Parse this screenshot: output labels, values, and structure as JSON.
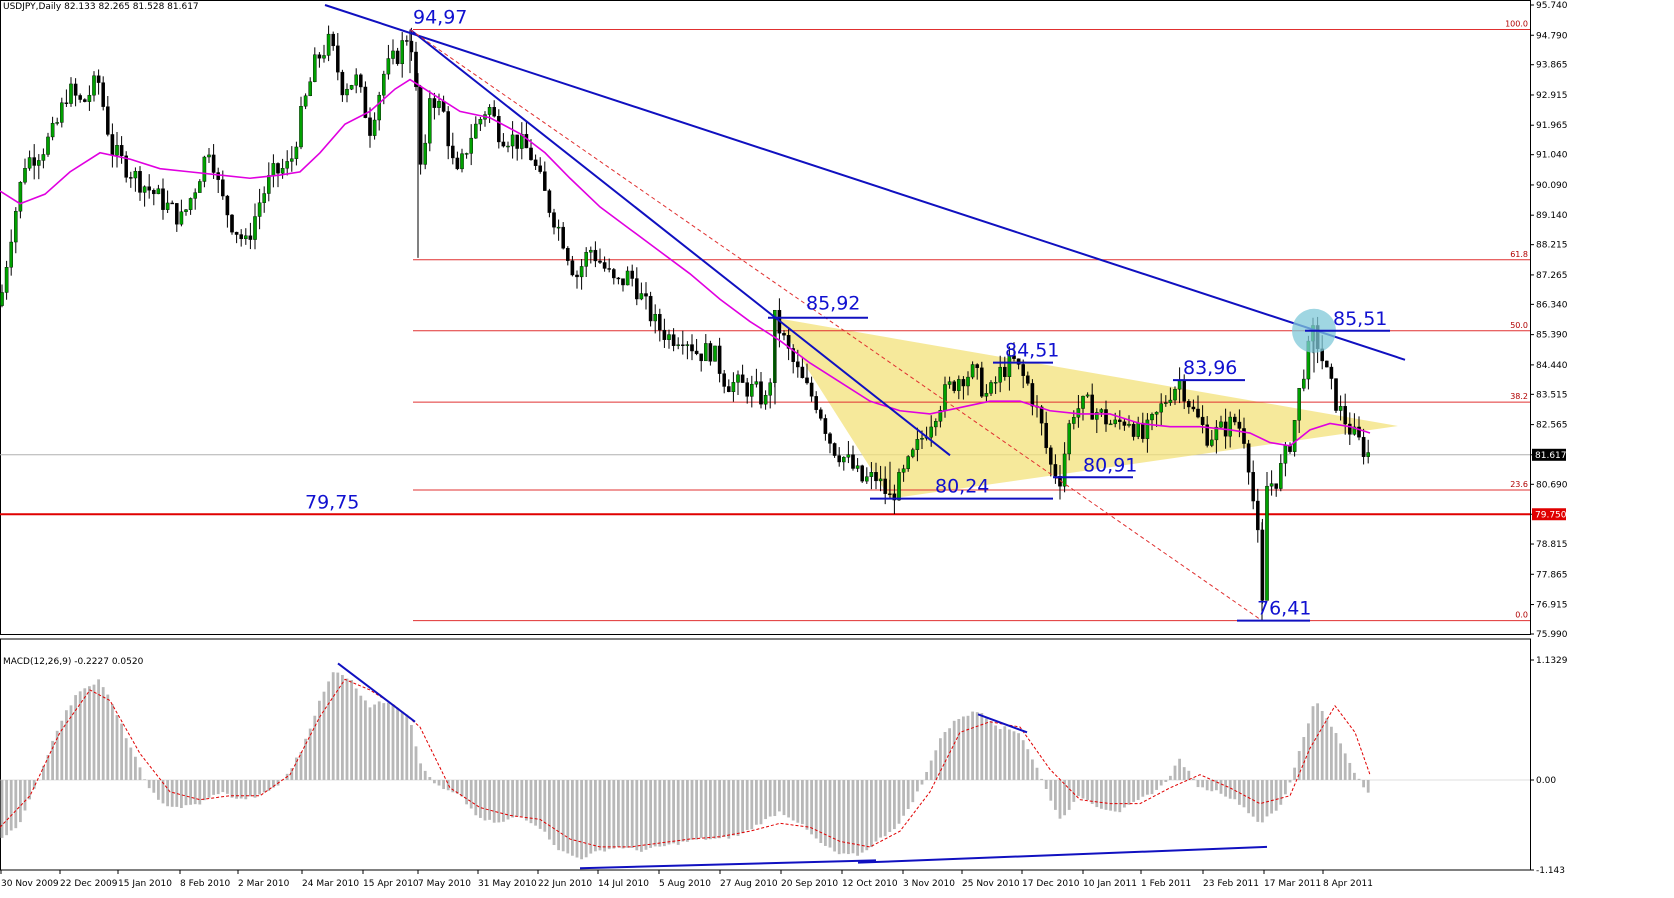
{
  "header": {
    "main_label": "USDJPY,Daily  82.133 82.265 81.528 81.617",
    "macd_label": "MACD(12,26,9) -0.2227 0.0520"
  },
  "colors": {
    "candle_up": "#00a000",
    "candle_down": "#000000",
    "ma": "#e000e0",
    "trendline": "#1010c0",
    "fib": "#e03030",
    "support": "#e00000",
    "triangle": "#f3e27a",
    "highlight": "#7fc8d8",
    "macd_hist": "#b8b8b8",
    "macd_signal": "#e00000"
  },
  "chart_data": [
    {
      "type": "candlestick",
      "symbol": "USDJPY",
      "timeframe": "Daily",
      "ohlc_last": {
        "open": 82.133,
        "high": 82.265,
        "low": 81.528,
        "close": 81.617
      },
      "y_ticks": [
        95.74,
        94.79,
        93.865,
        92.915,
        91.965,
        91.04,
        90.09,
        89.14,
        88.215,
        87.265,
        86.34,
        85.39,
        84.44,
        83.515,
        82.565,
        81.617,
        80.69,
        79.75,
        78.815,
        77.865,
        76.915,
        75.99
      ],
      "y_tick_labels": [
        "95.740",
        "94.790",
        "93.865",
        "92.915",
        "91.965",
        "91.040",
        "90.090",
        "89.140",
        "88.215",
        "87.265",
        "86.340",
        "85.390",
        "84.440",
        "83.515",
        "82.565",
        "81.617",
        "80.690",
        "79.750",
        "78.815",
        "77.865",
        "76.915",
        "75.990"
      ],
      "ylim": [
        75.99,
        95.74
      ],
      "x_labels": [
        "30 Nov 2009",
        "22 Dec 2009",
        "15 Jan 2010",
        "8 Feb 2010",
        "2 Mar 2010",
        "24 Mar 2010",
        "15 Apr 2010",
        "7 May 2010",
        "31 May 2010",
        "22 Jun 2010",
        "14 Jul 2010",
        "5 Aug 2010",
        "27 Aug 2010",
        "20 Sep 2010",
        "12 Oct 2010",
        "3 Nov 2010",
        "25 Nov 2010",
        "17 Dec 2010",
        "10 Jan 2011",
        "1 Feb 2011",
        "23 Feb 2011",
        "17 Mar 2011",
        "8 Apr 2011"
      ],
      "price_path": [
        [
          0,
          86.3
        ],
        [
          10,
          88.4
        ],
        [
          25,
          90.8
        ],
        [
          42,
          91.2
        ],
        [
          55,
          91.8
        ],
        [
          68,
          93.1
        ],
        [
          82,
          92.6
        ],
        [
          98,
          93.4
        ],
        [
          112,
          91.2
        ],
        [
          125,
          90.7
        ],
        [
          140,
          90.2
        ],
        [
          155,
          89.8
        ],
        [
          168,
          89.4
        ],
        [
          182,
          89.0
        ],
        [
          196,
          90.1
        ],
        [
          210,
          91.4
        ],
        [
          220,
          89.8
        ],
        [
          232,
          88.9
        ],
        [
          246,
          88.2
        ],
        [
          260,
          89.6
        ],
        [
          272,
          90.4
        ],
        [
          290,
          90.7
        ],
        [
          300,
          92.1
        ],
        [
          316,
          94.0
        ],
        [
          330,
          94.6
        ],
        [
          342,
          93.2
        ],
        [
          356,
          93.4
        ],
        [
          370,
          91.9
        ],
        [
          384,
          93.6
        ],
        [
          398,
          94.2
        ],
        [
          410,
          94.97
        ],
        [
          418,
          92.3
        ],
        [
          422,
          89.8
        ],
        [
          430,
          93.0
        ],
        [
          444,
          92.3
        ],
        [
          456,
          90.2
        ],
        [
          470,
          91.6
        ],
        [
          488,
          92.6
        ],
        [
          500,
          91.7
        ],
        [
          516,
          91.5
        ],
        [
          530,
          91.1
        ],
        [
          548,
          89.5
        ],
        [
          562,
          88.5
        ],
        [
          576,
          87.2
        ],
        [
          590,
          88.1
        ],
        [
          602,
          87.6
        ],
        [
          616,
          86.9
        ],
        [
          630,
          87.3
        ],
        [
          642,
          86.5
        ],
        [
          656,
          85.7
        ],
        [
          670,
          85.3
        ],
        [
          684,
          85.4
        ],
        [
          698,
          84.8
        ],
        [
          712,
          84.9
        ],
        [
          726,
          83.9
        ],
        [
          740,
          83.8
        ],
        [
          756,
          83.6
        ],
        [
          768,
          83.2
        ],
        [
          775,
          85.92
        ],
        [
          790,
          84.7
        ],
        [
          804,
          83.8
        ],
        [
          818,
          83.2
        ],
        [
          832,
          81.9
        ],
        [
          848,
          81.4
        ],
        [
          862,
          80.8
        ],
        [
          876,
          80.9
        ],
        [
          890,
          80.24
        ],
        [
          904,
          81.0
        ],
        [
          918,
          81.9
        ],
        [
          932,
          82.8
        ],
        [
          946,
          83.6
        ],
        [
          960,
          84.1
        ],
        [
          974,
          84.2
        ],
        [
          988,
          83.4
        ],
        [
          1002,
          84.3
        ],
        [
          1014,
          84.51
        ],
        [
          1028,
          83.8
        ],
        [
          1040,
          82.7
        ],
        [
          1050,
          81.3
        ],
        [
          1060,
          80.91
        ],
        [
          1072,
          83.0
        ],
        [
          1086,
          83.2
        ],
        [
          1100,
          82.9
        ],
        [
          1114,
          82.5
        ],
        [
          1128,
          82.8
        ],
        [
          1142,
          82.1
        ],
        [
          1156,
          82.8
        ],
        [
          1170,
          83.6
        ],
        [
          1180,
          83.96
        ],
        [
          1194,
          82.9
        ],
        [
          1208,
          82.2
        ],
        [
          1222,
          82.4
        ],
        [
          1236,
          82.7
        ],
        [
          1246,
          82.1
        ],
        [
          1252,
          80.5
        ],
        [
          1258,
          78.9
        ],
        [
          1262,
          76.41
        ],
        [
          1266,
          80.6
        ],
        [
          1278,
          80.9
        ],
        [
          1292,
          82.2
        ],
        [
          1302,
          84.1
        ],
        [
          1314,
          85.51
        ],
        [
          1326,
          84.2
        ],
        [
          1338,
          83.1
        ],
        [
          1352,
          82.3
        ],
        [
          1366,
          81.7
        ],
        [
          1370,
          81.617
        ]
      ],
      "ma_path": [
        [
          0,
          89.9
        ],
        [
          20,
          89.5
        ],
        [
          45,
          89.8
        ],
        [
          70,
          90.5
        ],
        [
          100,
          91.1
        ],
        [
          130,
          90.9
        ],
        [
          160,
          90.6
        ],
        [
          190,
          90.5
        ],
        [
          220,
          90.4
        ],
        [
          250,
          90.3
        ],
        [
          280,
          90.4
        ],
        [
          300,
          90.5
        ],
        [
          320,
          91.1
        ],
        [
          345,
          92.0
        ],
        [
          370,
          92.4
        ],
        [
          395,
          93.1
        ],
        [
          410,
          93.4
        ],
        [
          430,
          93.0
        ],
        [
          460,
          92.4
        ],
        [
          490,
          92.2
        ],
        [
          520,
          91.7
        ],
        [
          545,
          91.1
        ],
        [
          570,
          90.3
        ],
        [
          600,
          89.4
        ],
        [
          630,
          88.7
        ],
        [
          660,
          88.0
        ],
        [
          690,
          87.3
        ],
        [
          720,
          86.5
        ],
        [
          750,
          85.8
        ],
        [
          780,
          85.2
        ],
        [
          810,
          84.5
        ],
        [
          840,
          83.9
        ],
        [
          870,
          83.3
        ],
        [
          900,
          83.0
        ],
        [
          930,
          82.9
        ],
        [
          960,
          83.1
        ],
        [
          990,
          83.3
        ],
        [
          1020,
          83.3
        ],
        [
          1050,
          83.0
        ],
        [
          1080,
          82.9
        ],
        [
          1110,
          82.9
        ],
        [
          1140,
          82.6
        ],
        [
          1170,
          82.5
        ],
        [
          1200,
          82.5
        ],
        [
          1230,
          82.4
        ],
        [
          1250,
          82.3
        ],
        [
          1270,
          82.0
        ],
        [
          1290,
          81.9
        ],
        [
          1310,
          82.4
        ],
        [
          1330,
          82.6
        ],
        [
          1350,
          82.5
        ],
        [
          1370,
          82.3
        ]
      ],
      "fib_levels": [
        {
          "label": "100.0",
          "price": 94.97
        },
        {
          "label": "61.8",
          "price": 87.74
        },
        {
          "label": "50.0",
          "price": 85.51
        },
        {
          "label": "38.2",
          "price": 83.27
        },
        {
          "label": "23.6",
          "price": 80.51
        },
        {
          "label": "0.0",
          "price": 76.41
        }
      ],
      "support_level": {
        "price": 79.75,
        "label": "79,75"
      },
      "current_price_label": "81.617",
      "support_price_label": "79.750",
      "annotations": [
        {
          "text": "94,97",
          "price": 94.97
        },
        {
          "text": "85,92",
          "price": 85.92
        },
        {
          "text": "84,51",
          "price": 84.51
        },
        {
          "text": "83,96",
          "price": 83.96
        },
        {
          "text": "85,51",
          "price": 85.51
        },
        {
          "text": "80,24",
          "price": 80.24
        },
        {
          "text": "80,91",
          "price": 80.91
        },
        {
          "text": "79,75",
          "price": 79.75
        },
        {
          "text": "76,41",
          "price": 76.41
        }
      ]
    },
    {
      "type": "bar",
      "name": "MACD(12,26,9)",
      "macd_value": -0.2227,
      "signal_value": 0.052,
      "y_tick_labels": [
        "1.1329",
        "0.00",
        "-1.143"
      ],
      "ylim": [
        -1.143,
        1.1329
      ],
      "hist_path": [
        [
          0,
          -0.75
        ],
        [
          20,
          -0.55
        ],
        [
          40,
          0.05
        ],
        [
          60,
          0.55
        ],
        [
          80,
          0.85
        ],
        [
          100,
          0.95
        ],
        [
          120,
          0.55
        ],
        [
          140,
          0.1
        ],
        [
          160,
          -0.3
        ],
        [
          180,
          -0.35
        ],
        [
          200,
          -0.3
        ],
        [
          220,
          -0.15
        ],
        [
          240,
          -0.25
        ],
        [
          260,
          -0.2
        ],
        [
          280,
          -0.05
        ],
        [
          300,
          0.25
        ],
        [
          320,
          0.75
        ],
        [
          335,
          1.05
        ],
        [
          350,
          0.95
        ],
        [
          370,
          0.7
        ],
        [
          390,
          0.75
        ],
        [
          410,
          0.6
        ],
        [
          420,
          0.15
        ],
        [
          440,
          -0.1
        ],
        [
          460,
          -0.2
        ],
        [
          480,
          -0.5
        ],
        [
          500,
          -0.55
        ],
        [
          520,
          -0.45
        ],
        [
          540,
          -0.6
        ],
        [
          560,
          -0.9
        ],
        [
          580,
          -1.0
        ],
        [
          600,
          -0.9
        ],
        [
          620,
          -0.85
        ],
        [
          640,
          -0.9
        ],
        [
          660,
          -0.85
        ],
        [
          680,
          -0.8
        ],
        [
          700,
          -0.75
        ],
        [
          720,
          -0.75
        ],
        [
          740,
          -0.7
        ],
        [
          760,
          -0.55
        ],
        [
          780,
          -0.4
        ],
        [
          800,
          -0.55
        ],
        [
          820,
          -0.8
        ],
        [
          840,
          -0.95
        ],
        [
          860,
          -0.95
        ],
        [
          880,
          -0.75
        ],
        [
          900,
          -0.55
        ],
        [
          920,
          -0.1
        ],
        [
          940,
          0.4
        ],
        [
          960,
          0.6
        ],
        [
          980,
          0.65
        ],
        [
          1000,
          0.5
        ],
        [
          1020,
          0.45
        ],
        [
          1040,
          0.05
        ],
        [
          1060,
          -0.5
        ],
        [
          1080,
          -0.2
        ],
        [
          1100,
          -0.35
        ],
        [
          1120,
          -0.4
        ],
        [
          1140,
          -0.25
        ],
        [
          1160,
          -0.1
        ],
        [
          1180,
          0.2
        ],
        [
          1200,
          -0.1
        ],
        [
          1220,
          -0.15
        ],
        [
          1240,
          -0.3
        ],
        [
          1260,
          -0.55
        ],
        [
          1280,
          -0.35
        ],
        [
          1300,
          0.3
        ],
        [
          1315,
          0.75
        ],
        [
          1330,
          0.55
        ],
        [
          1350,
          0.15
        ],
        [
          1370,
          -0.2
        ]
      ],
      "signal_path": [
        [
          0,
          -0.6
        ],
        [
          30,
          -0.2
        ],
        [
          60,
          0.45
        ],
        [
          90,
          0.85
        ],
        [
          110,
          0.75
        ],
        [
          140,
          0.25
        ],
        [
          170,
          -0.15
        ],
        [
          200,
          -0.25
        ],
        [
          230,
          -0.2
        ],
        [
          260,
          -0.2
        ],
        [
          290,
          0.05
        ],
        [
          320,
          0.6
        ],
        [
          345,
          0.95
        ],
        [
          370,
          0.85
        ],
        [
          395,
          0.7
        ],
        [
          420,
          0.5
        ],
        [
          450,
          -0.1
        ],
        [
          480,
          -0.35
        ],
        [
          510,
          -0.45
        ],
        [
          540,
          -0.5
        ],
        [
          570,
          -0.75
        ],
        [
          600,
          -0.85
        ],
        [
          630,
          -0.85
        ],
        [
          660,
          -0.8
        ],
        [
          690,
          -0.75
        ],
        [
          720,
          -0.72
        ],
        [
          750,
          -0.65
        ],
        [
          780,
          -0.55
        ],
        [
          810,
          -0.6
        ],
        [
          840,
          -0.78
        ],
        [
          870,
          -0.85
        ],
        [
          900,
          -0.65
        ],
        [
          930,
          -0.15
        ],
        [
          960,
          0.45
        ],
        [
          990,
          0.55
        ],
        [
          1020,
          0.5
        ],
        [
          1050,
          0.1
        ],
        [
          1080,
          -0.25
        ],
        [
          1110,
          -0.3
        ],
        [
          1140,
          -0.3
        ],
        [
          1170,
          -0.1
        ],
        [
          1200,
          0.05
        ],
        [
          1230,
          -0.1
        ],
        [
          1260,
          -0.3
        ],
        [
          1290,
          -0.2
        ],
        [
          1310,
          0.3
        ],
        [
          1335,
          0.7
        ],
        [
          1355,
          0.45
        ],
        [
          1370,
          0.05
        ]
      ]
    }
  ]
}
